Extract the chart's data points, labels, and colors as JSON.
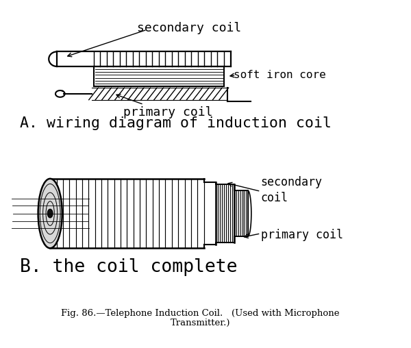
{
  "bg_color": "#ffffff",
  "line_color": "#000000",
  "title_A": "A. wiring diagram of induction coil",
  "title_B": "B. the coil complete",
  "caption_line1": "Fig. 86.—Telephone Induction Coil.   (Used with Microphone",
  "caption_line2": "Transmitter.)",
  "label_sec_A": "secondary coil",
  "label_pri_A": "primary coil",
  "label_core_A": "soft iron core",
  "label_sec_B": "secondary\ncoil",
  "label_pri_B": "primary coil",
  "figsize": [
    6.0,
    5.08
  ],
  "dpi": 100
}
